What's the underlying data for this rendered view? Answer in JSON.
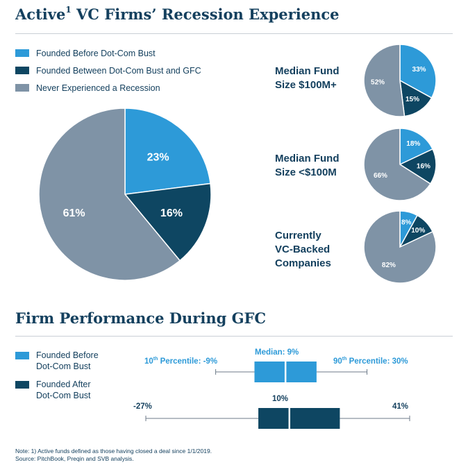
{
  "colors": {
    "before_dotcom": "#2d9ad8",
    "between": "#0e4662",
    "never": "#7f93a6",
    "title": "#14405e",
    "whisker": "#6c7a88"
  },
  "section1": {
    "title_main": "Active",
    "title_sup": "1",
    "title_rest": " VC Firms’ Recession Experience"
  },
  "legend": [
    {
      "label": "Founded Before Dot-Com Bust",
      "color": "#2d9ad8"
    },
    {
      "label": "Founded Between Dot-Com Bust and GFC",
      "color": "#0e4662"
    },
    {
      "label": "Never Experienced a Recession",
      "color": "#7f93a6"
    }
  ],
  "pies": [
    {
      "name": "main",
      "title_lines": [],
      "values": [
        23,
        16,
        61
      ],
      "labels": [
        "23%",
        "16%",
        "61%"
      ]
    },
    {
      "name": "median-fund-100m-plus",
      "title_lines": [
        "Median Fund",
        "Size $100M+"
      ],
      "values": [
        33,
        15,
        52
      ],
      "labels": [
        "33%",
        "15%",
        "52%"
      ]
    },
    {
      "name": "median-fund-under-100m",
      "title_lines": [
        "Median Fund",
        "Size <$100M"
      ],
      "values": [
        18,
        16,
        66
      ],
      "labels": [
        "18%",
        "16%",
        "66%"
      ]
    },
    {
      "name": "vc-backed",
      "title_lines": [
        "Currently",
        "VC-Backed",
        "Companies"
      ],
      "values": [
        8,
        10,
        82
      ],
      "labels": [
        "8%",
        "10%",
        "82%"
      ]
    }
  ],
  "section2": {
    "title": "Firm Performance During GFC"
  },
  "box_legend": [
    {
      "lines": [
        "Founded Before",
        "Dot-Com Bust"
      ],
      "color": "#2d9ad8"
    },
    {
      "lines": [
        "Founded After",
        "Dot-Com Bust"
      ],
      "color": "#0e4662"
    }
  ],
  "box_labels": {
    "before": {
      "p10_pre": "10",
      "p10_sup": "th",
      "p10_post": " Percentile: -9%",
      "median": "Median: 9%",
      "p90_pre": "90",
      "p90_sup": "th",
      "p90_post": " Percentile: 30%"
    },
    "after": {
      "min": "-27%",
      "median": "10%",
      "max": "41%"
    }
  },
  "chart_data": [
    {
      "type": "pie",
      "title": "Active VC Firms’ Recession Experience",
      "categories": [
        "Founded Before Dot-Com Bust",
        "Founded Between Dot-Com Bust and GFC",
        "Never Experienced a Recession"
      ],
      "values": [
        23,
        16,
        61
      ]
    },
    {
      "type": "pie",
      "title": "Median Fund Size $100M+",
      "categories": [
        "Founded Before Dot-Com Bust",
        "Founded Between Dot-Com Bust and GFC",
        "Never Experienced a Recession"
      ],
      "values": [
        33,
        15,
        52
      ]
    },
    {
      "type": "pie",
      "title": "Median Fund Size <$100M",
      "categories": [
        "Founded Before Dot-Com Bust",
        "Founded Between Dot-Com Bust and GFC",
        "Never Experienced a Recession"
      ],
      "values": [
        18,
        16,
        66
      ]
    },
    {
      "type": "pie",
      "title": "Currently VC-Backed Companies",
      "categories": [
        "Founded Before Dot-Com Bust",
        "Founded Between Dot-Com Bust and GFC",
        "Never Experienced a Recession"
      ],
      "values": [
        8,
        10,
        82
      ]
    },
    {
      "type": "box",
      "title": "Firm Performance During GFC",
      "series": [
        {
          "name": "Founded Before Dot-Com Bust",
          "whisker_low": -9,
          "q1": 1,
          "median": 9,
          "q3": 17,
          "whisker_high": 30
        },
        {
          "name": "Founded After Dot-Com Bust",
          "whisker_low": -27,
          "q1": 2,
          "median": 10,
          "q3": 23,
          "whisker_high": 41
        }
      ]
    }
  ],
  "footnote": {
    "line1_pre": "Note: 1) Active funds defined as those having closed a deal since 1/1/2019.",
    "line2": "Source: PitchBook, Preqin and SVB analysis."
  }
}
